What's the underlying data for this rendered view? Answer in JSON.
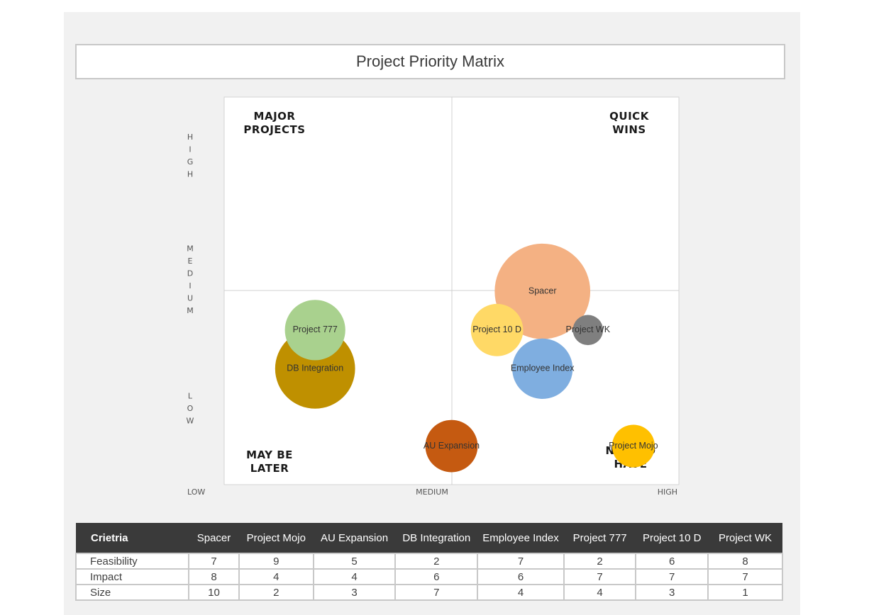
{
  "title": "Project Priority Matrix",
  "chart_data": {
    "type": "scatter",
    "title": "Project Priority Matrix",
    "xlabel": "",
    "ylabel": "",
    "xlim": [
      0,
      10
    ],
    "ylim": [
      0,
      10
    ],
    "x_tick_labels": [
      "LOW",
      "MEDIUM",
      "HIGH"
    ],
    "y_tick_labels": [
      "HIGH",
      "MEDIUM",
      "LOW"
    ],
    "quadrants": [
      {
        "label_lines": [
          "MAJOR",
          "PROJECTS"
        ],
        "position": "top-left"
      },
      {
        "label_lines": [
          "QUICK",
          "WINS"
        ],
        "position": "top-right"
      },
      {
        "label_lines": [
          "MAY BE",
          "LATER"
        ],
        "position": "bottom-left"
      },
      {
        "label_lines": [
          "NICE TO",
          "HAVE"
        ],
        "position": "bottom-right"
      }
    ],
    "points": [
      {
        "name": "Spacer",
        "x": 7,
        "y": 8,
        "size": 10,
        "color": "#f4b183"
      },
      {
        "name": "Project Mojo",
        "x": 9,
        "y": 4,
        "size": 2,
        "color": "#ffc000"
      },
      {
        "name": "AU Expansion",
        "x": 5,
        "y": 4,
        "size": 3,
        "color": "#c55a11"
      },
      {
        "name": "DB Integration",
        "x": 2,
        "y": 6,
        "size": 7,
        "color": "#bf9000"
      },
      {
        "name": "Employee Index",
        "x": 7,
        "y": 6,
        "size": 4,
        "color": "#7faee0"
      },
      {
        "name": "Project 777",
        "x": 2,
        "y": 7,
        "size": 4,
        "color": "#a9d18e"
      },
      {
        "name": "Project 10 D",
        "x": 6,
        "y": 7,
        "size": 3,
        "color": "#ffd966"
      },
      {
        "name": "Project WK",
        "x": 8,
        "y": 7,
        "size": 1,
        "color": "#7f7f7f"
      }
    ]
  },
  "table": {
    "header": [
      "Crietria",
      "Spacer",
      "Project Mojo",
      "AU Expansion",
      "DB Integration",
      "Employee Index",
      "Project 777",
      "Project 10 D",
      "Project WK"
    ],
    "rows": [
      {
        "label": "Feasibility",
        "values": [
          "7",
          "9",
          "5",
          "2",
          "7",
          "2",
          "6",
          "8"
        ]
      },
      {
        "label": "Impact",
        "values": [
          "8",
          "4",
          "4",
          "6",
          "6",
          "7",
          "7",
          "7"
        ]
      },
      {
        "label": "Size",
        "values": [
          "10",
          "2",
          "3",
          "7",
          "4",
          "4",
          "3",
          "1"
        ]
      }
    ]
  }
}
